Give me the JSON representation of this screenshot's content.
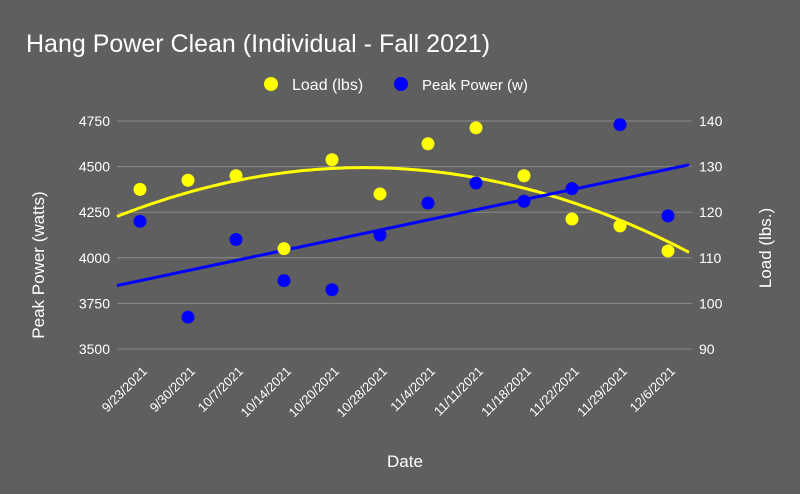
{
  "chart_data": {
    "type": "scatter",
    "title": "Hang Power Clean (Individual - Fall 2021)",
    "xlabel": "Date",
    "ylabel": "Peak Power (watts)",
    "y2label": "Load (lbs.)",
    "categories": [
      "9/23/2021",
      "9/30/2021",
      "10/7/2021",
      "10/14/2021",
      "10/20/2021",
      "10/28/2021",
      "11/4/2021",
      "11/11/2021",
      "11/18/2021",
      "11/22/2021",
      "11/29/2021",
      "12/6/2021"
    ],
    "ylim": [
      3500,
      4750
    ],
    "yticks": [
      "3500",
      "3750",
      "4000",
      "4250",
      "4500",
      "4750"
    ],
    "y2lim": [
      90,
      140
    ],
    "y2ticks": [
      "90",
      "100",
      "110",
      "120",
      "130",
      "140"
    ],
    "grid": true,
    "legend": "top",
    "series": [
      {
        "name": "Load (lbs)",
        "axis": "right",
        "color": "#ffff00",
        "trendline": "polynomial",
        "values": [
          125,
          127,
          128,
          112,
          131.5,
          124,
          135,
          138.5,
          128,
          118.5,
          117,
          111.5
        ]
      },
      {
        "name": "Peak Power (w)",
        "axis": "left",
        "color": "#0000ff",
        "trendline": "linear",
        "values": [
          4200,
          3675,
          4100,
          3875,
          3825,
          4125,
          4300,
          4410,
          4310,
          4380,
          4730,
          4230
        ]
      }
    ]
  }
}
